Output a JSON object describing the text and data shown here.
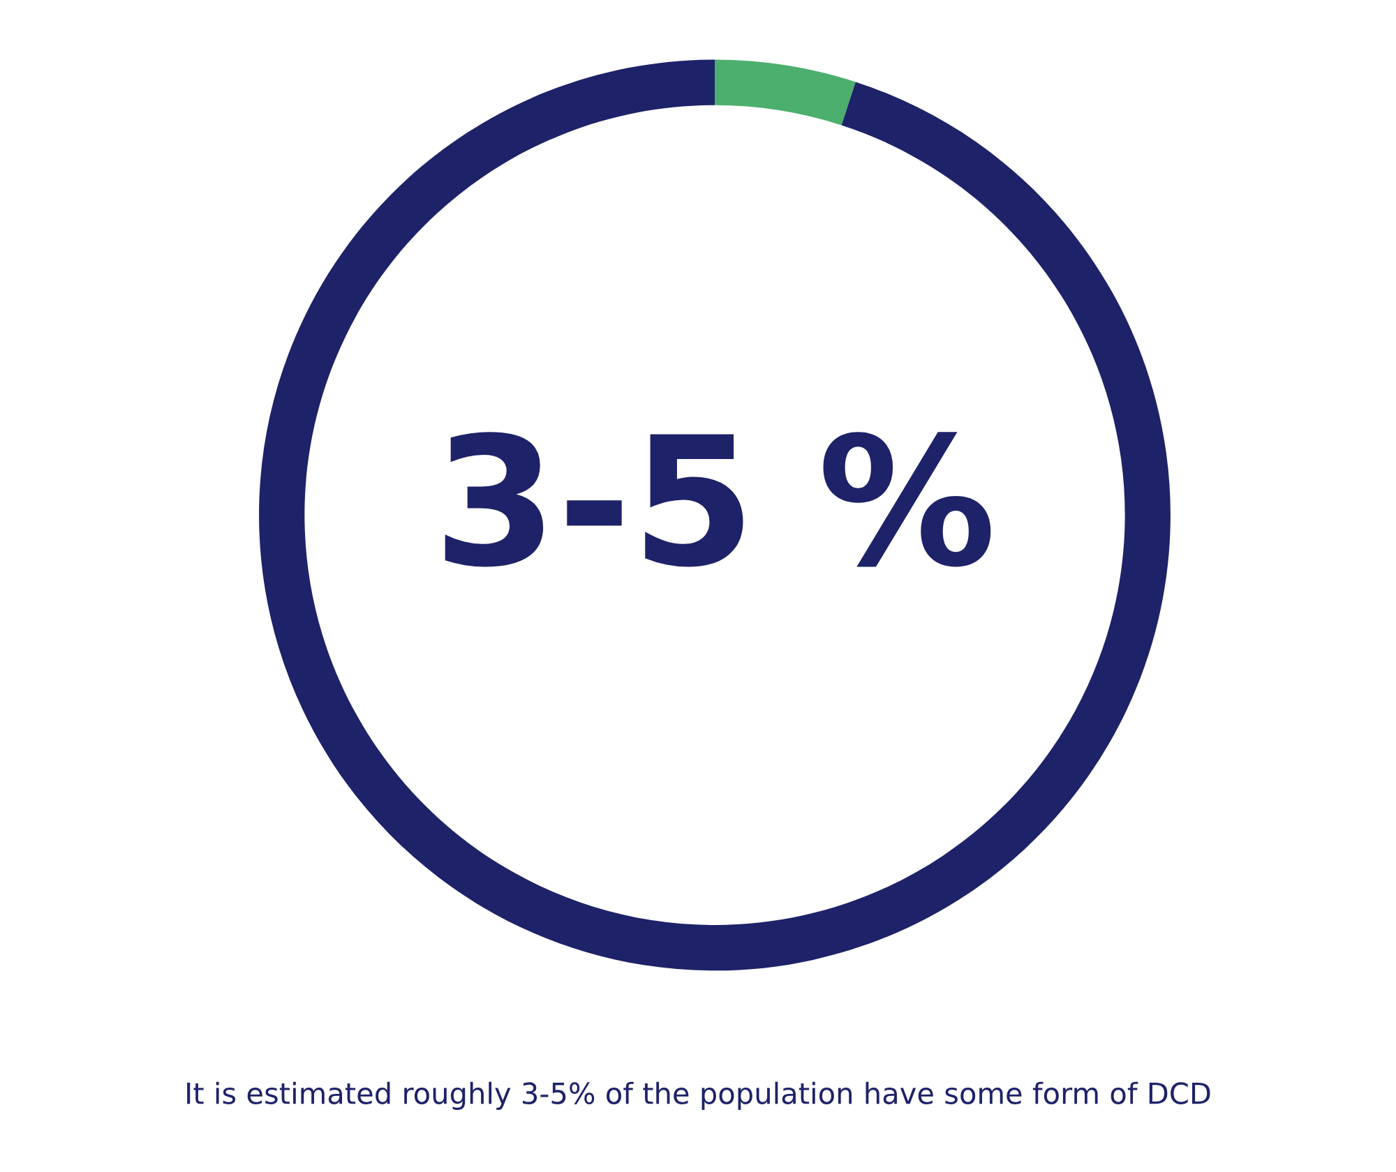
{
  "chart_data": {
    "type": "donut",
    "categories": [
      null,
      null
    ],
    "values": [
      5,
      95
    ],
    "colors": [
      "#4caf6e",
      "#1e2268"
    ],
    "annotations": [
      "3-5 %",
      "It is estimated roughly 3-5% of the population have some form of DCD"
    ]
  }
}
